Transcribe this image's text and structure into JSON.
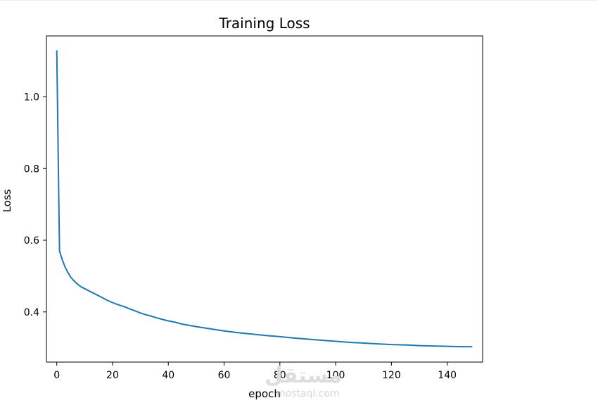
{
  "chart_data": {
    "type": "line",
    "title": "Training Loss",
    "xlabel": "epoch",
    "ylabel": "Loss",
    "xlim": [
      -3.7,
      152.7
    ],
    "ylim": [
      0.26,
      1.17
    ],
    "xticks": [
      0,
      20,
      40,
      60,
      80,
      100,
      120,
      140
    ],
    "yticks": [
      0.4,
      0.6,
      0.8,
      1.0
    ],
    "ytick_labels": [
      "0.4",
      "0.6",
      "0.8",
      "1.0"
    ],
    "grid": false,
    "legend": "none",
    "series": [
      {
        "color": "#1f77b4",
        "x": [
          0,
          1,
          2,
          3,
          4,
          5,
          6,
          7,
          8,
          9,
          10,
          12,
          14,
          16,
          18,
          20,
          22,
          24,
          26,
          28,
          30,
          32,
          34,
          36,
          38,
          40,
          42,
          45,
          50,
          55,
          60,
          65,
          70,
          75,
          80,
          85,
          90,
          95,
          100,
          105,
          110,
          115,
          120,
          125,
          130,
          135,
          140,
          145,
          149
        ],
        "y": [
          1.13,
          0.57,
          0.545,
          0.525,
          0.51,
          0.497,
          0.488,
          0.481,
          0.474,
          0.469,
          0.465,
          0.457,
          0.449,
          0.441,
          0.433,
          0.426,
          0.42,
          0.415,
          0.409,
          0.403,
          0.397,
          0.392,
          0.388,
          0.383,
          0.379,
          0.375,
          0.372,
          0.366,
          0.359,
          0.353,
          0.347,
          0.342,
          0.338,
          0.334,
          0.331,
          0.327,
          0.324,
          0.321,
          0.318,
          0.315,
          0.313,
          0.311,
          0.309,
          0.308,
          0.306,
          0.305,
          0.304,
          0.303,
          0.303
        ]
      }
    ]
  },
  "watermark": {
    "glyph": "مستقل",
    "text": "mostaql.com"
  }
}
